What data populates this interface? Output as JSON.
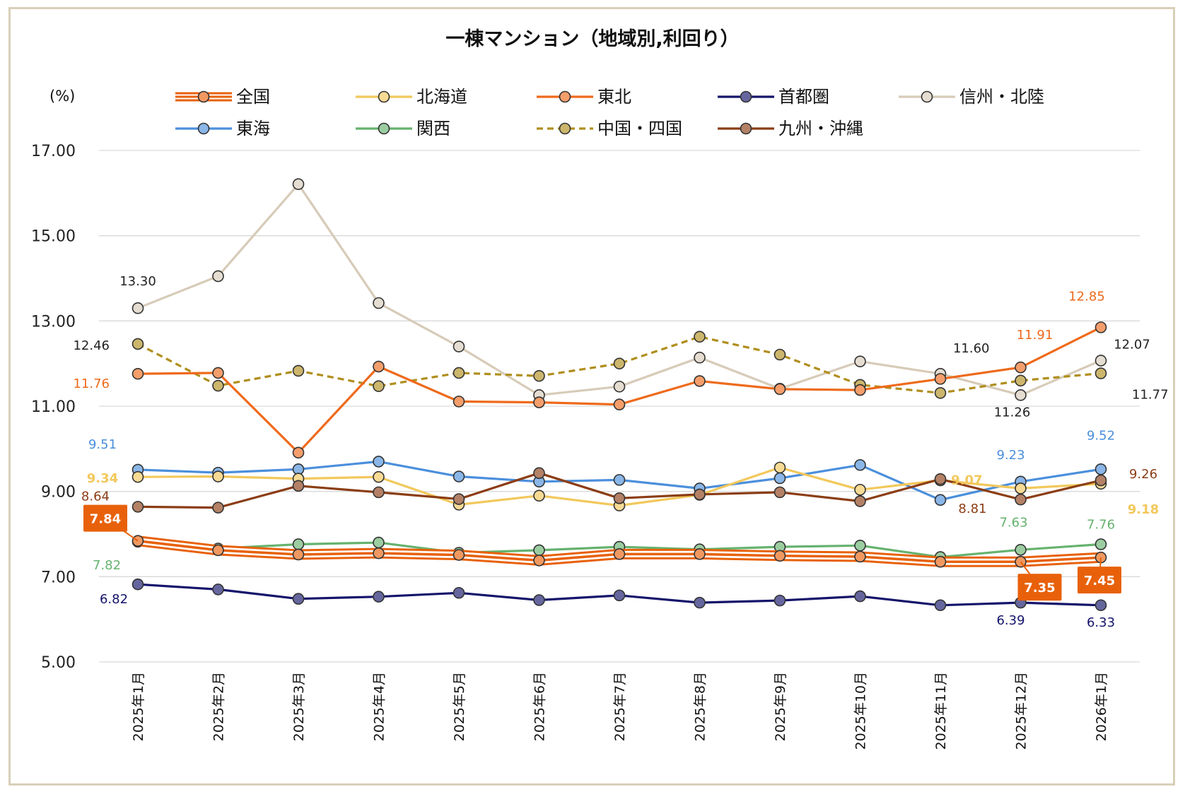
{
  "chart_data": {
    "type": "line",
    "title": "一棟マンション（地域別,利回り）",
    "ylabel": "(%)",
    "xlabel": "",
    "ylim": [
      5.0,
      17.0
    ],
    "yticks": [
      "5.00",
      "7.00",
      "9.00",
      "11.00",
      "13.00",
      "15.00",
      "17.00"
    ],
    "grid": true,
    "legend_position": "top",
    "categories": [
      "2025年1月",
      "2025年2月",
      "2025年3月",
      "2025年4月",
      "2025年5月",
      "2025年6月",
      "2025年7月",
      "2025年8月",
      "2025年9月",
      "2025年10月",
      "2025年11月",
      "2025年12月",
      "2026年1月"
    ],
    "series": [
      {
        "name": "全国",
        "color": "#e8610a",
        "style": "triple",
        "values": [
          7.84,
          7.62,
          7.52,
          7.55,
          7.51,
          7.38,
          7.53,
          7.53,
          7.49,
          7.47,
          7.35,
          7.35,
          7.45
        ]
      },
      {
        "name": "北海道",
        "color": "#f2c85b",
        "style": "solid",
        "values": [
          9.34,
          9.35,
          9.3,
          9.34,
          8.69,
          8.9,
          8.67,
          8.92,
          9.56,
          9.04,
          9.26,
          9.07,
          9.18
        ]
      },
      {
        "name": "東北",
        "color": "#ee6a1b",
        "style": "solid",
        "values": [
          11.76,
          11.78,
          9.91,
          11.93,
          11.11,
          11.09,
          11.04,
          11.59,
          11.4,
          11.38,
          11.64,
          11.91,
          12.85
        ]
      },
      {
        "name": "首都圏",
        "color": "#14146b",
        "style": "solid",
        "values": [
          6.82,
          6.7,
          6.48,
          6.53,
          6.62,
          6.45,
          6.56,
          6.39,
          6.44,
          6.54,
          6.33,
          6.39,
          6.33
        ]
      },
      {
        "name": "信州・北陸",
        "color": "#d7cbb8",
        "style": "solid",
        "values": [
          13.3,
          14.05,
          16.21,
          13.42,
          12.4,
          11.26,
          11.46,
          12.14,
          11.41,
          12.05,
          11.76,
          11.26,
          12.07
        ]
      },
      {
        "name": "東海",
        "color": "#4b8fdc",
        "style": "solid",
        "values": [
          9.51,
          9.44,
          9.52,
          9.7,
          9.35,
          9.23,
          9.27,
          9.07,
          9.31,
          9.62,
          8.8,
          9.23,
          9.52
        ]
      },
      {
        "name": "関西",
        "color": "#66b26e",
        "style": "solid",
        "values": [
          7.82,
          7.66,
          7.76,
          7.8,
          7.56,
          7.62,
          7.7,
          7.64,
          7.7,
          7.73,
          7.46,
          7.63,
          7.76
        ]
      },
      {
        "name": "中国・四国",
        "color": "#b08e1d",
        "style": "dashed",
        "values": [
          12.46,
          11.48,
          11.83,
          11.47,
          11.78,
          11.71,
          12.0,
          12.63,
          12.21,
          11.5,
          11.31,
          11.6,
          11.77
        ]
      },
      {
        "name": "九州・沖縄",
        "color": "#8b3d14",
        "style": "solid",
        "values": [
          8.64,
          8.62,
          9.13,
          8.98,
          8.82,
          9.43,
          8.84,
          8.93,
          8.98,
          8.77,
          9.29,
          8.81,
          9.26
        ]
      }
    ],
    "data_labels": [
      {
        "series": "信州・北陸",
        "index": 0,
        "text": "13.30"
      },
      {
        "series": "信州・北陸",
        "index": 11,
        "text": "11.26"
      },
      {
        "series": "信州・北陸",
        "index": 12,
        "text": "12.07"
      },
      {
        "series": "中国・四国",
        "index": 0,
        "text": "12.46"
      },
      {
        "series": "中国・四国",
        "index": 11,
        "text": "11.60"
      },
      {
        "series": "中国・四国",
        "index": 12,
        "text": "11.77"
      },
      {
        "series": "東北",
        "index": 0,
        "text": "11.76"
      },
      {
        "series": "東北",
        "index": 11,
        "text": "11.91"
      },
      {
        "series": "東北",
        "index": 12,
        "text": "12.85"
      },
      {
        "series": "東海",
        "index": 0,
        "text": "9.51"
      },
      {
        "series": "東海",
        "index": 11,
        "text": "9.23"
      },
      {
        "series": "東海",
        "index": 12,
        "text": "9.52"
      },
      {
        "series": "北海道",
        "index": 0,
        "text": "9.34"
      },
      {
        "series": "北海道",
        "index": 11,
        "text": "9.07"
      },
      {
        "series": "北海道",
        "index": 12,
        "text": "9.18"
      },
      {
        "series": "九州・沖縄",
        "index": 0,
        "text": "8.64"
      },
      {
        "series": "九州・沖縄",
        "index": 11,
        "text": "8.81"
      },
      {
        "series": "九州・沖縄",
        "index": 12,
        "text": "9.26"
      },
      {
        "series": "全国",
        "index": 0,
        "text": "7.84"
      },
      {
        "series": "全国",
        "index": 11,
        "text": "7.35"
      },
      {
        "series": "全国",
        "index": 12,
        "text": "7.45"
      },
      {
        "series": "関西",
        "index": 0,
        "text": "7.82"
      },
      {
        "series": "関西",
        "index": 11,
        "text": "7.63"
      },
      {
        "series": "関西",
        "index": 12,
        "text": "7.76"
      },
      {
        "series": "首都圏",
        "index": 0,
        "text": "6.82"
      },
      {
        "series": "首都圏",
        "index": 11,
        "text": "6.39"
      },
      {
        "series": "首都圏",
        "index": 12,
        "text": "6.33"
      }
    ]
  }
}
